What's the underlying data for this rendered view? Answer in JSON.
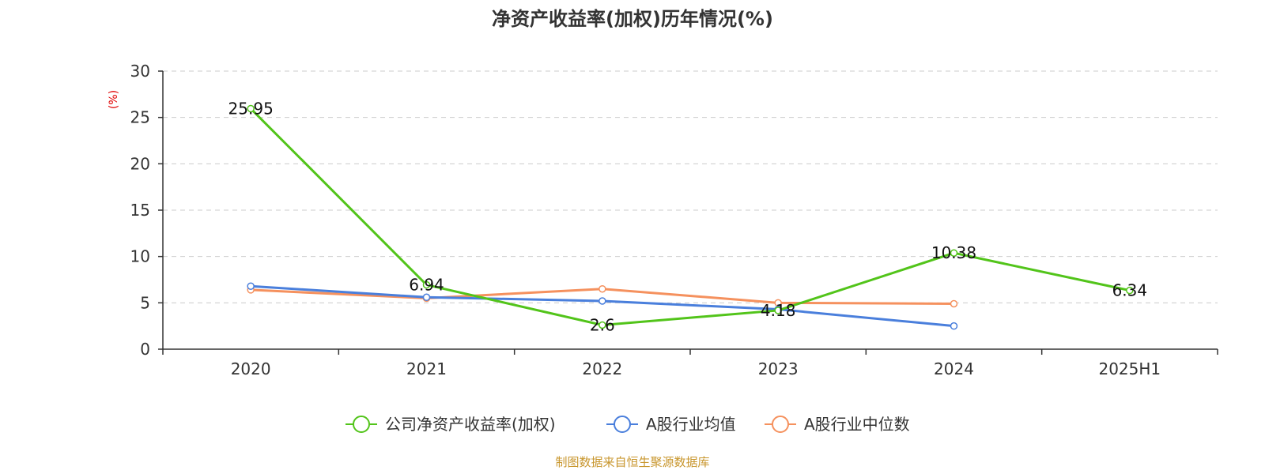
{
  "chart_data": {
    "type": "line",
    "title": "净资产收益率(加权)历年情况(%)",
    "ylabel": "(%)",
    "xlabel": "",
    "categories": [
      "2020",
      "2021",
      "2022",
      "2023",
      "2024",
      "2025H1"
    ],
    "ylim": [
      0,
      30
    ],
    "yticks": [
      0,
      5,
      10,
      15,
      20,
      25,
      30
    ],
    "grid": true,
    "legend_position": "bottom",
    "series": [
      {
        "name": "公司净资产收益率(加权)",
        "color": "#52c41a",
        "values": [
          25.95,
          6.94,
          2.6,
          4.18,
          10.38,
          6.34
        ],
        "labels": [
          "25.95",
          "6.94",
          "2.6",
          "4.18",
          "10.38",
          "6.34"
        ]
      },
      {
        "name": "A股行业均值",
        "color": "#4a7fdc",
        "values": [
          6.8,
          5.6,
          5.2,
          4.3,
          2.5,
          null
        ]
      },
      {
        "name": "A股行业中位数",
        "color": "#f5915e",
        "values": [
          6.4,
          5.5,
          6.5,
          5.0,
          4.9,
          null
        ]
      }
    ],
    "source": "制图数据来自恒生聚源数据库"
  }
}
